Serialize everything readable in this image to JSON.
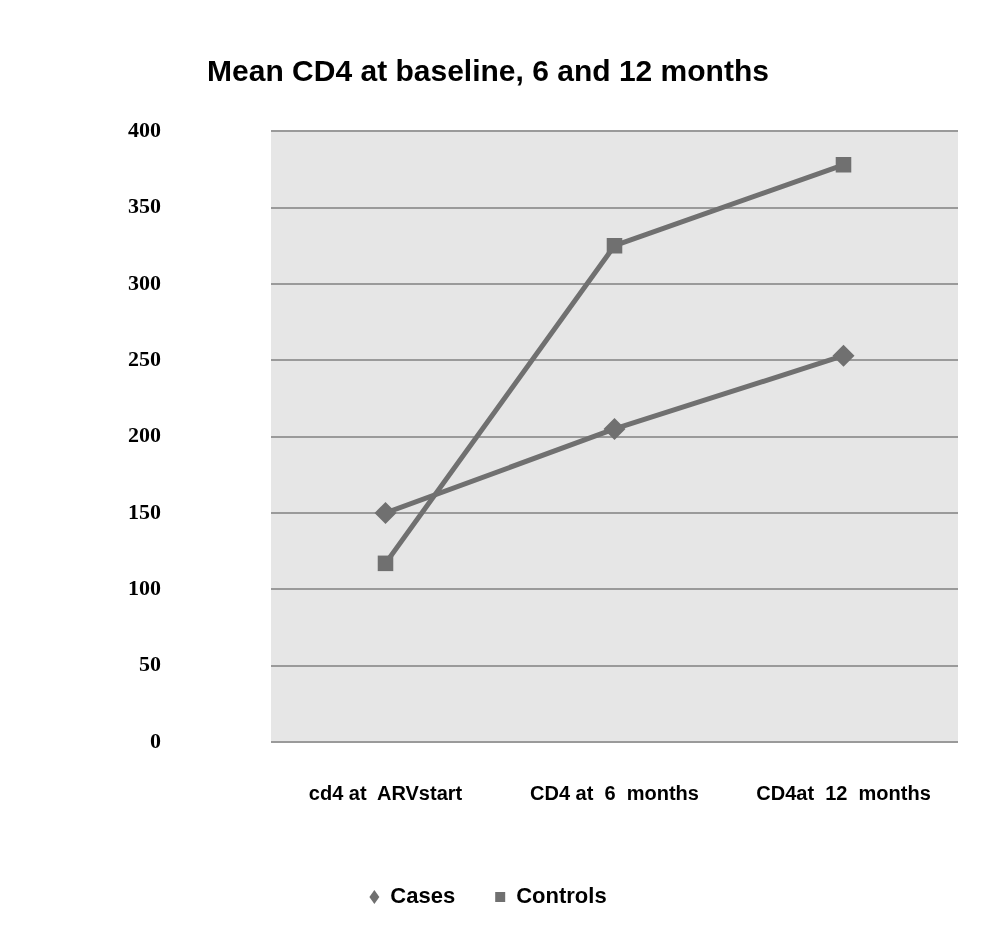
{
  "chart_data": {
    "type": "line",
    "title": "Mean CD4 at baseline, 6 and 12 months",
    "categories": [
      "cd4 at  ARVstart",
      "CD4 at  6  months",
      "CD4at  12  months"
    ],
    "series": [
      {
        "name": "Cases",
        "color": "#707070",
        "marker": "diamond",
        "values": [
          150,
          205,
          253
        ]
      },
      {
        "name": "Controls",
        "color": "#707070",
        "marker": "square",
        "values": [
          117,
          325,
          378
        ]
      }
    ],
    "ylim": [
      0,
      400
    ],
    "yticks": [
      0,
      50,
      100,
      150,
      200,
      250,
      300,
      350,
      400
    ],
    "grid": "y",
    "legend": "bottom"
  }
}
